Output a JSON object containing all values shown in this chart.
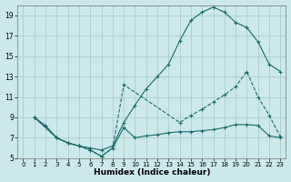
{
  "xlabel": "Humidex (Indice chaleur)",
  "bg_color": "#cce8ea",
  "grid_color": "#aacdd0",
  "line_color": "#1a6b6b",
  "xlim": [
    -0.5,
    23.5
  ],
  "ylim": [
    5,
    20
  ],
  "yticks": [
    5,
    7,
    9,
    11,
    13,
    15,
    17,
    19
  ],
  "xticks": [
    0,
    1,
    2,
    3,
    4,
    5,
    6,
    7,
    8,
    9,
    10,
    11,
    12,
    13,
    14,
    15,
    16,
    17,
    18,
    19,
    20,
    21,
    22,
    23
  ],
  "line1_x": [
    1,
    2,
    3,
    4,
    5,
    6,
    7,
    8,
    9,
    10,
    11,
    12,
    13,
    14,
    15,
    16,
    17,
    18,
    19,
    20,
    21,
    22,
    23
  ],
  "line1_y": [
    9.0,
    8.2,
    7.0,
    6.5,
    6.2,
    6.0,
    5.8,
    6.2,
    8.5,
    10.2,
    11.8,
    13.0,
    14.2,
    16.5,
    18.5,
    19.3,
    19.8,
    19.3,
    18.3,
    17.8,
    16.4,
    14.2,
    13.5
  ],
  "line2_x": [
    1,
    3,
    4,
    5,
    6,
    7,
    8,
    9,
    14,
    15,
    16,
    17,
    18,
    19,
    20,
    21,
    22,
    23
  ],
  "line2_y": [
    9.0,
    7.0,
    6.5,
    6.2,
    5.8,
    5.2,
    6.0,
    12.2,
    8.5,
    9.2,
    9.8,
    10.5,
    11.2,
    12.0,
    13.5,
    11.0,
    9.2,
    7.1
  ],
  "line3_x": [
    1,
    3,
    4,
    5,
    6,
    7,
    8,
    9,
    10,
    11,
    12,
    13,
    14,
    15,
    16,
    17,
    18,
    19,
    20,
    21,
    22,
    23
  ],
  "line3_y": [
    9.0,
    7.0,
    6.5,
    6.2,
    5.8,
    5.2,
    6.0,
    8.0,
    7.0,
    7.2,
    7.3,
    7.5,
    7.6,
    7.6,
    7.7,
    7.8,
    8.0,
    8.3,
    8.3,
    8.2,
    7.2,
    7.0
  ]
}
